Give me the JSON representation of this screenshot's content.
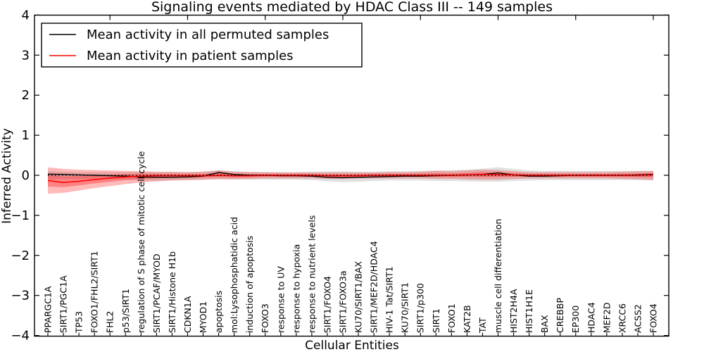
{
  "chart_data": {
    "type": "line",
    "title": "Signaling events mediated by HDAC Class III -- 149 samples",
    "xlabel": "Cellular Entities",
    "ylabel": "Inferred Activity",
    "ylim": [
      -4,
      4
    ],
    "yticks": [
      -4,
      -3,
      -2,
      -1,
      0,
      1,
      2,
      3,
      4
    ],
    "ytick_labels": [
      "−4",
      "−3",
      "−2",
      "−1",
      "0",
      "1",
      "2",
      "3",
      "4"
    ],
    "grid": false,
    "legend_position": "upper left",
    "zero_line": 0,
    "colors": {
      "permuted_line": "#000000",
      "patient_line": "#ff0000",
      "permuted_band": "rgba(0,0,0,0.12)",
      "patient_band": "rgba(255,0,0,0.27)",
      "patient_band_inner": "rgba(255,0,0,0.30)",
      "axis": "#000000",
      "background": "#ffffff"
    },
    "categories": [
      "PPARGC1A",
      "SIRT1/PGC1A",
      "TP53",
      "FOXO1/FHL2/SIRT1",
      "FHL2",
      "p53/SIRT1",
      "regulation of S phase of mitotic cell cycle",
      "SIRT1/PCAF/MYOD",
      "SIRT1/Histone H1b",
      "CDKN1A",
      "MYOD1",
      "apoptosis",
      "mol:Lysophosphatidic acid",
      "induction of apoptosis",
      "FOXO3",
      "response to UV",
      "response to hypoxia",
      "response to nutrient levels",
      "SIRT1/FOXO4",
      "SIRT1/FOXO3a",
      "KU70/SIRT1/BAX",
      "SIRT1/MEF2D/HDAC4",
      "HIV-1 Tat/SIRT1",
      "KU70/SIRT1",
      "SIRT1/p300",
      "SIRT1",
      "FOXO1",
      "KAT2B",
      "TAT",
      "muscle cell differentiation",
      "HIST2H4A",
      "HIST1H1E",
      "BAX",
      "CREBBP",
      "EP300",
      "HDAC4",
      "MEF2D",
      "XRCC6",
      "ACSS2",
      "FOXO4"
    ],
    "series": [
      {
        "name": "Mean activity in all permuted samples",
        "color": "#000000",
        "mean": [
          0.03,
          0.02,
          0.01,
          0.0,
          -0.01,
          -0.02,
          -0.04,
          -0.05,
          -0.05,
          -0.04,
          -0.02,
          0.07,
          0.02,
          0.0,
          0.0,
          -0.01,
          -0.01,
          -0.02,
          -0.05,
          -0.06,
          -0.05,
          -0.04,
          -0.03,
          -0.02,
          -0.02,
          -0.01,
          0.0,
          0.01,
          0.02,
          0.06,
          0.01,
          -0.02,
          -0.02,
          -0.01,
          0.0,
          0.0,
          0.0,
          0.0,
          0.01,
          0.02
        ],
        "upper": [
          0.1,
          0.09,
          0.08,
          0.08,
          0.08,
          0.08,
          0.09,
          0.08,
          0.08,
          0.08,
          0.09,
          0.13,
          0.1,
          0.09,
          0.09,
          0.08,
          0.08,
          0.09,
          0.1,
          0.1,
          0.09,
          0.09,
          0.1,
          0.1,
          0.11,
          0.12,
          0.13,
          0.14,
          0.17,
          0.2,
          0.16,
          0.12,
          0.11,
          0.11,
          0.11,
          0.11,
          0.11,
          0.11,
          0.11,
          0.11
        ],
        "lower": [
          -0.1,
          -0.09,
          -0.09,
          -0.09,
          -0.1,
          -0.11,
          -0.13,
          -0.14,
          -0.13,
          -0.12,
          -0.11,
          -0.09,
          -0.1,
          -0.11,
          -0.11,
          -0.11,
          -0.11,
          -0.12,
          -0.15,
          -0.17,
          -0.16,
          -0.14,
          -0.13,
          -0.13,
          -0.13,
          -0.14,
          -0.14,
          -0.15,
          -0.16,
          -0.16,
          -0.14,
          -0.13,
          -0.12,
          -0.12,
          -0.12,
          -0.12,
          -0.12,
          -0.12,
          -0.12,
          -0.12
        ]
      },
      {
        "name": "Mean activity in patient samples",
        "color": "#ff0000",
        "mean": [
          -0.13,
          -0.18,
          -0.15,
          -0.11,
          -0.07,
          -0.04,
          -0.02,
          -0.01,
          -0.01,
          -0.01,
          -0.01,
          0.0,
          -0.01,
          -0.01,
          0.0,
          0.0,
          0.0,
          0.0,
          -0.01,
          -0.01,
          -0.01,
          0.0,
          0.0,
          0.0,
          0.0,
          0.0,
          0.0,
          0.01,
          0.02,
          0.02,
          0.01,
          0.0,
          0.0,
          0.0,
          0.0,
          0.0,
          0.0,
          0.0,
          0.0,
          0.01
        ],
        "upper": [
          0.2,
          0.16,
          0.14,
          0.13,
          0.12,
          0.11,
          0.1,
          0.09,
          0.09,
          0.08,
          0.09,
          0.12,
          0.09,
          0.08,
          0.07,
          0.07,
          0.07,
          0.07,
          0.07,
          0.07,
          0.07,
          0.07,
          0.08,
          0.08,
          0.09,
          0.11,
          0.1,
          0.12,
          0.14,
          0.13,
          0.1,
          0.08,
          0.08,
          0.08,
          0.08,
          0.08,
          0.08,
          0.09,
          0.1,
          0.11
        ],
        "lower": [
          -0.46,
          -0.44,
          -0.38,
          -0.32,
          -0.27,
          -0.22,
          -0.18,
          -0.15,
          -0.13,
          -0.12,
          -0.11,
          -0.1,
          -0.1,
          -0.09,
          -0.08,
          -0.08,
          -0.08,
          -0.08,
          -0.09,
          -0.09,
          -0.08,
          -0.08,
          -0.08,
          -0.08,
          -0.08,
          -0.09,
          -0.09,
          -0.1,
          -0.11,
          -0.11,
          -0.09,
          -0.08,
          -0.08,
          -0.08,
          -0.08,
          -0.08,
          -0.08,
          -0.09,
          -0.1,
          -0.12
        ]
      }
    ]
  }
}
